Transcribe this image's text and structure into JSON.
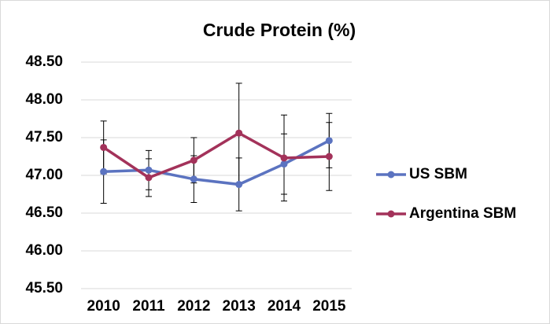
{
  "chart_data": {
    "type": "line",
    "title": "Crude Protein (%)",
    "categories": [
      "2010",
      "2011",
      "2012",
      "2013",
      "2014",
      "2015"
    ],
    "series": [
      {
        "name": "US SBM",
        "color": "#5b73c0",
        "values": [
          47.05,
          47.07,
          46.95,
          46.88,
          47.15,
          47.46
        ],
        "errors": [
          0.42,
          0.26,
          0.31,
          0.35,
          0.4,
          0.36
        ]
      },
      {
        "name": "Argentina SBM",
        "color": "#a3325a",
        "values": [
          47.37,
          46.97,
          47.2,
          47.56,
          47.23,
          47.25
        ],
        "errors": [
          0.35,
          0.25,
          0.3,
          0.66,
          0.57,
          0.45
        ]
      }
    ],
    "ylim": [
      45.5,
      48.5
    ],
    "yticks": [
      {
        "value": 45.5,
        "label": "45.50"
      },
      {
        "value": 46,
        "label": "46.00"
      },
      {
        "value": 46.5,
        "label": "46.50"
      },
      {
        "value": 47,
        "label": "47.00"
      },
      {
        "value": 47.5,
        "label": "47.50"
      },
      {
        "value": 48,
        "label": "48.00"
      },
      {
        "value": 48.5,
        "label": "48.50"
      }
    ],
    "grid": true,
    "error_bars": true,
    "legend": "right"
  }
}
